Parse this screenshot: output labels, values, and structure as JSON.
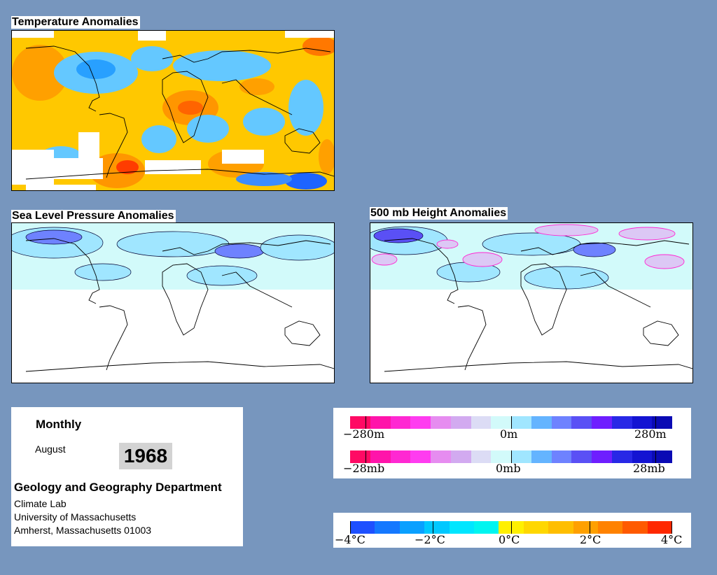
{
  "maps": {
    "temperature": {
      "title": "Temperature Anomalies"
    },
    "pressure": {
      "title": "Sea Level Pressure Anomalies"
    },
    "height": {
      "title": "500 mb Height Anomalies"
    }
  },
  "info": {
    "period": "Monthly",
    "month": "August",
    "year": "1968",
    "department": "Geology and Geography Department",
    "lab": "Climate Lab",
    "university": "University of Massachusetts",
    "address": "Amherst, Massachusetts 01003"
  },
  "legend_height_pressure": {
    "colors": [
      "#ff0a64",
      "#ff14aa",
      "#ff28d2",
      "#ff3cf0",
      "#e68cf0",
      "#d2aaf0",
      "#dcdcf5",
      "#d2fafa",
      "#a0e6ff",
      "#64b4ff",
      "#6e82ff",
      "#5a50f5",
      "#6e1eff",
      "#2828e6",
      "#1414d2",
      "#0a0ab4"
    ],
    "height_labels": {
      "min": "−280m",
      "zero": "0m",
      "max": "280m"
    },
    "pressure_labels": {
      "min": "−28mb",
      "zero": "0mb",
      "max": "28mb"
    }
  },
  "legend_temperature": {
    "colors": [
      "#1e50ff",
      "#1478ff",
      "#0aa0ff",
      "#00c8ff",
      "#00e6ff",
      "#00f5f0",
      "#fff000",
      "#ffd700",
      "#ffbe00",
      "#ffa000",
      "#ff8200",
      "#ff5a00",
      "#ff2800"
    ],
    "labels": {
      "m4": "−4°C",
      "m2": "−2°C",
      "zero": "0°C",
      "p2": "2°C",
      "p4": "4°C"
    }
  }
}
